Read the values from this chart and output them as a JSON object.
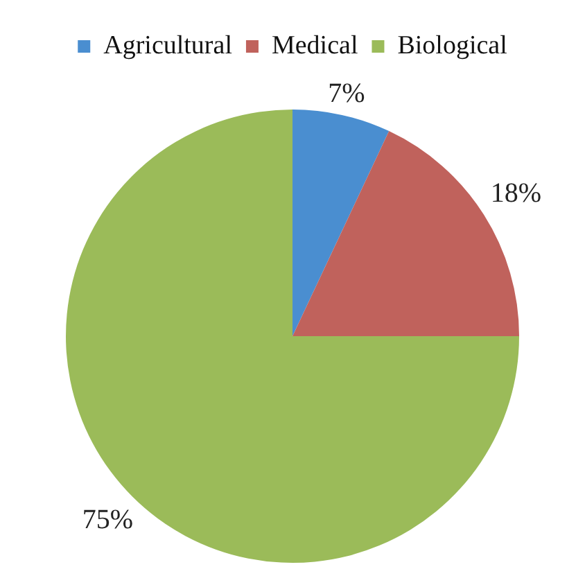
{
  "chart_data": {
    "type": "pie",
    "categories": [
      "Agricultural",
      "Medical",
      "Biological"
    ],
    "values": [
      7,
      18,
      75
    ],
    "colors": [
      "#4a8ed0",
      "#c0625c",
      "#9bbb59"
    ],
    "value_labels": [
      "7%",
      "18%",
      "75%"
    ],
    "legend": "top"
  }
}
